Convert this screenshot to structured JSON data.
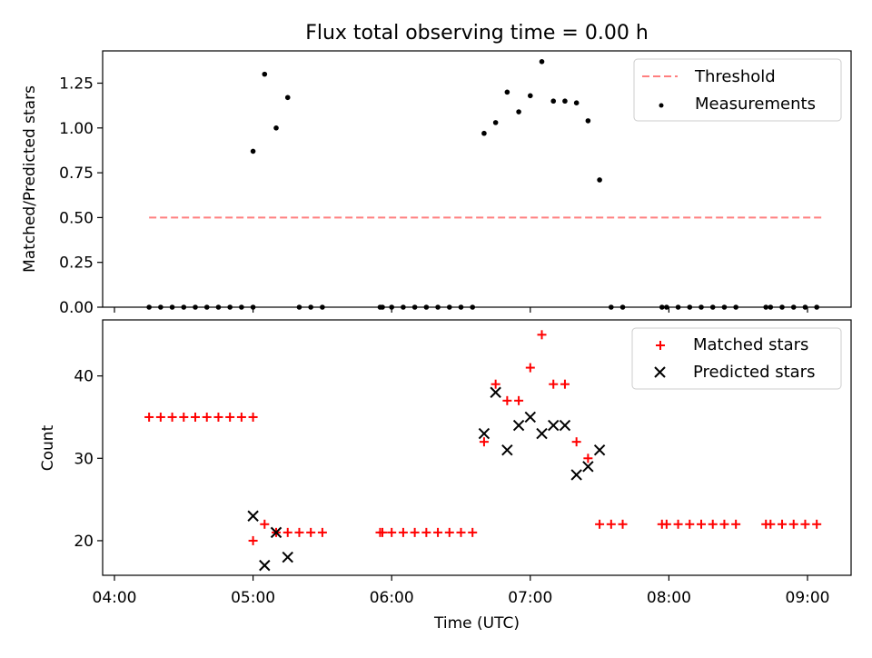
{
  "chart_data": [
    {
      "type": "scatter",
      "title": "Flux total observing time = 0.00 h",
      "ylabel": "Matched/Predicted stars",
      "xlabel": "",
      "ylim": [
        0,
        1.43
      ],
      "yticks": [
        "0.00",
        "0.25",
        "0.50",
        "0.75",
        "1.00",
        "1.25"
      ],
      "legend_position": "top-right",
      "threshold": {
        "name": "Threshold",
        "value": 0.5,
        "x_range": [
          "04:15",
          "09:07"
        ],
        "color": "#ff7f7f"
      },
      "series": [
        {
          "name": "Measurements",
          "color": "#000000",
          "points": [
            [
              "04:15",
              0
            ],
            [
              "04:20",
              0
            ],
            [
              "04:25",
              0
            ],
            [
              "04:30",
              0
            ],
            [
              "04:35",
              0
            ],
            [
              "04:40",
              0
            ],
            [
              "04:45",
              0
            ],
            [
              "04:50",
              0
            ],
            [
              "04:55",
              0
            ],
            [
              "04:60",
              0
            ],
            [
              "05:00",
              0.87
            ],
            [
              "05:05",
              1.3
            ],
            [
              "05:10",
              1.0
            ],
            [
              "05:15",
              1.17
            ],
            [
              "05:20",
              0
            ],
            [
              "05:25",
              0
            ],
            [
              "05:30",
              0
            ],
            [
              "05:55",
              0
            ],
            [
              "05:56",
              0
            ],
            [
              "06:00",
              0
            ],
            [
              "06:05",
              0
            ],
            [
              "06:10",
              0
            ],
            [
              "06:15",
              0
            ],
            [
              "06:20",
              0
            ],
            [
              "06:25",
              0
            ],
            [
              "06:30",
              0
            ],
            [
              "06:35",
              0
            ],
            [
              "06:40",
              0.97
            ],
            [
              "06:45",
              1.03
            ],
            [
              "06:50",
              1.2
            ],
            [
              "06:55",
              1.09
            ],
            [
              "07:00",
              1.18
            ],
            [
              "07:05",
              1.37
            ],
            [
              "07:10",
              1.15
            ],
            [
              "07:15",
              1.15
            ],
            [
              "07:20",
              1.14
            ],
            [
              "07:25",
              1.04
            ],
            [
              "07:30",
              0.71
            ],
            [
              "07:35",
              0
            ],
            [
              "07:40",
              0
            ],
            [
              "07:57",
              0
            ],
            [
              "07:59",
              0
            ],
            [
              "08:04",
              0
            ],
            [
              "08:09",
              0
            ],
            [
              "08:14",
              0
            ],
            [
              "08:19",
              0
            ],
            [
              "08:24",
              0
            ],
            [
              "08:29",
              0
            ],
            [
              "08:42",
              0
            ],
            [
              "08:44",
              0
            ],
            [
              "08:49",
              0
            ],
            [
              "08:54",
              0
            ],
            [
              "08:59",
              0
            ],
            [
              "09:04",
              0
            ]
          ]
        }
      ]
    },
    {
      "type": "scatter",
      "title": "",
      "xlabel": "Time (UTC)",
      "ylabel": "Count",
      "ylim": [
        15.8,
        46.8
      ],
      "yticks": [
        "20",
        "30",
        "40"
      ],
      "xticks": [
        "04:00",
        "05:00",
        "06:00",
        "07:00",
        "08:00",
        "09:00"
      ],
      "xlim": [
        "04:00",
        "09:20"
      ],
      "legend_position": "top-right",
      "series": [
        {
          "name": "Matched stars",
          "color": "#ff0000",
          "marker": "plus",
          "points": [
            [
              "04:15",
              35
            ],
            [
              "04:20",
              35
            ],
            [
              "04:25",
              35
            ],
            [
              "04:30",
              35
            ],
            [
              "04:35",
              35
            ],
            [
              "04:40",
              35
            ],
            [
              "04:45",
              35
            ],
            [
              "04:50",
              35
            ],
            [
              "04:55",
              35
            ],
            [
              "04:60",
              35
            ],
            [
              "05:00",
              20
            ],
            [
              "05:05",
              22
            ],
            [
              "05:10",
              21
            ],
            [
              "05:15",
              21
            ],
            [
              "05:20",
              21
            ],
            [
              "05:25",
              21
            ],
            [
              "05:30",
              21
            ],
            [
              "05:55",
              21
            ],
            [
              "05:56",
              21
            ],
            [
              "06:00",
              21
            ],
            [
              "06:05",
              21
            ],
            [
              "06:10",
              21
            ],
            [
              "06:15",
              21
            ],
            [
              "06:20",
              21
            ],
            [
              "06:25",
              21
            ],
            [
              "06:30",
              21
            ],
            [
              "06:35",
              21
            ],
            [
              "06:40",
              32
            ],
            [
              "06:45",
              39
            ],
            [
              "06:50",
              37
            ],
            [
              "06:55",
              37
            ],
            [
              "07:00",
              41
            ],
            [
              "07:05",
              45
            ],
            [
              "07:10",
              39
            ],
            [
              "07:15",
              39
            ],
            [
              "07:20",
              32
            ],
            [
              "07:25",
              30
            ],
            [
              "07:30",
              22
            ],
            [
              "07:35",
              22
            ],
            [
              "07:40",
              22
            ],
            [
              "07:57",
              22
            ],
            [
              "07:59",
              22
            ],
            [
              "08:04",
              22
            ],
            [
              "08:09",
              22
            ],
            [
              "08:14",
              22
            ],
            [
              "08:19",
              22
            ],
            [
              "08:24",
              22
            ],
            [
              "08:29",
              22
            ],
            [
              "08:42",
              22
            ],
            [
              "08:44",
              22
            ],
            [
              "08:49",
              22
            ],
            [
              "08:54",
              22
            ],
            [
              "08:59",
              22
            ],
            [
              "09:04",
              22
            ]
          ]
        },
        {
          "name": "Predicted stars",
          "color": "#000000",
          "marker": "x",
          "points": [
            [
              "05:00",
              23
            ],
            [
              "05:05",
              17
            ],
            [
              "05:10",
              21
            ],
            [
              "05:15",
              18
            ],
            [
              "06:40",
              33
            ],
            [
              "06:45",
              38
            ],
            [
              "06:50",
              31
            ],
            [
              "06:55",
              34
            ],
            [
              "07:00",
              35
            ],
            [
              "07:05",
              33
            ],
            [
              "07:10",
              34
            ],
            [
              "07:15",
              34
            ],
            [
              "07:20",
              28
            ],
            [
              "07:25",
              29
            ],
            [
              "07:30",
              31
            ]
          ]
        }
      ]
    }
  ]
}
